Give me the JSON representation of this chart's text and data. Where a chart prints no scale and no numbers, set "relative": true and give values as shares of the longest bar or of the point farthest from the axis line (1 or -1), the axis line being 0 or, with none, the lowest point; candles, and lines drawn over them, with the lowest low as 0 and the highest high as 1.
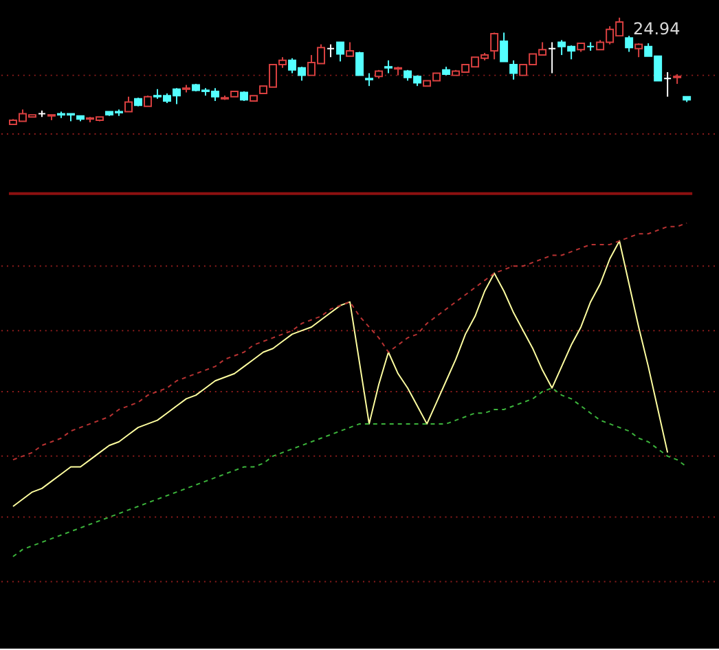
{
  "chart_data": [
    {
      "type": "candlestick",
      "relative": true,
      "ref_lines": [
        {
          "axis": "y",
          "value": 0.46,
          "color": "#8c1c1c",
          "line_style": "dotted"
        },
        {
          "axis": "y",
          "value": -0.09,
          "color": "#8c1c1c",
          "line_style": "dotted"
        }
      ],
      "categories": [
        null,
        null,
        null,
        null,
        null,
        null,
        null,
        null,
        null,
        null,
        null,
        null,
        null,
        null,
        null,
        null,
        null,
        null,
        null,
        null,
        null,
        null,
        null,
        null,
        null,
        null,
        null,
        null,
        null,
        null,
        null,
        null,
        null,
        null,
        null,
        null,
        null,
        null,
        null,
        null,
        null,
        null,
        null,
        null,
        null,
        null,
        null,
        null,
        null,
        null,
        null,
        null,
        null,
        null,
        null,
        null,
        null,
        null,
        null,
        null,
        null,
        null,
        null,
        null,
        null,
        null,
        null,
        null,
        null,
        null,
        null
      ],
      "ohlc": [
        [
          0,
          0.05,
          0,
          0.04
        ],
        [
          0.03,
          0.14,
          0.03,
          0.1
        ],
        [
          0.07,
          0.09,
          0.07,
          0.09
        ],
        [
          0.1,
          0.13,
          0.07,
          0.1
        ],
        [
          0.08,
          0.09,
          0.04,
          0.09
        ],
        [
          0.1,
          0.12,
          0.06,
          0.09
        ],
        [
          0.1,
          0.1,
          0.03,
          0.09
        ],
        [
          0.08,
          0.08,
          0.03,
          0.05
        ],
        [
          0.05,
          0.07,
          0.02,
          0.06
        ],
        [
          0.04,
          0.07,
          0.03,
          0.07
        ],
        [
          0.12,
          0.12,
          0.08,
          0.09
        ],
        [
          0.12,
          0.14,
          0.08,
          0.11
        ],
        [
          0.12,
          0.26,
          0.12,
          0.21
        ],
        [
          0.24,
          0.25,
          0.17,
          0.18
        ],
        [
          0.17,
          0.27,
          0.17,
          0.26
        ],
        [
          0.27,
          0.33,
          0.24,
          0.26
        ],
        [
          0.27,
          0.29,
          0.2,
          0.22
        ],
        [
          0.33,
          0.34,
          0.19,
          0.27
        ],
        [
          0.33,
          0.37,
          0.3,
          0.34
        ],
        [
          0.37,
          0.38,
          0.31,
          0.32
        ],
        [
          0.32,
          0.34,
          0.27,
          0.31
        ],
        [
          0.31,
          0.34,
          0.22,
          0.26
        ],
        [
          0.24,
          0.27,
          0.23,
          0.25
        ],
        [
          0.26,
          0.31,
          0.26,
          0.31
        ],
        [
          0.3,
          0.31,
          0.22,
          0.23
        ],
        [
          0.22,
          0.27,
          0.22,
          0.27
        ],
        [
          0.29,
          0.36,
          0.29,
          0.36
        ],
        [
          0.35,
          0.56,
          0.35,
          0.56
        ],
        [
          0.56,
          0.63,
          0.53,
          0.6
        ],
        [
          0.6,
          0.62,
          0.48,
          0.51
        ],
        [
          0.53,
          0.54,
          0.41,
          0.46
        ],
        [
          0.46,
          0.65,
          0.46,
          0.58
        ],
        [
          0.57,
          0.75,
          0.57,
          0.72
        ],
        [
          0.71,
          0.75,
          0.63,
          0.71
        ],
        [
          0.77,
          0.77,
          0.59,
          0.66
        ],
        [
          0.64,
          0.77,
          0.64,
          0.69
        ],
        [
          0.67,
          0.68,
          0.46,
          0.46
        ],
        [
          0.43,
          0.48,
          0.36,
          0.42
        ],
        [
          0.45,
          0.51,
          0.43,
          0.5
        ],
        [
          0.54,
          0.6,
          0.48,
          0.53
        ],
        [
          0.52,
          0.54,
          0.46,
          0.53
        ],
        [
          0.5,
          0.51,
          0.41,
          0.44
        ],
        [
          0.45,
          0.46,
          0.36,
          0.39
        ],
        [
          0.36,
          0.41,
          0.36,
          0.41
        ],
        [
          0.41,
          0.48,
          0.41,
          0.48
        ],
        [
          0.51,
          0.54,
          0.46,
          0.47
        ],
        [
          0.46,
          0.51,
          0.46,
          0.5
        ],
        [
          0.49,
          0.56,
          0.49,
          0.56
        ],
        [
          0.54,
          0.63,
          0.54,
          0.63
        ],
        [
          0.62,
          0.67,
          0.6,
          0.65
        ],
        [
          0.69,
          0.86,
          0.61,
          0.85
        ],
        [
          0.78,
          0.86,
          0.59,
          0.59
        ],
        [
          0.56,
          0.6,
          0.42,
          0.48
        ],
        [
          0.46,
          0.56,
          0.46,
          0.56
        ],
        [
          0.56,
          0.66,
          0.56,
          0.66
        ],
        [
          0.65,
          0.77,
          0.65,
          0.7
        ],
        [
          0.71,
          0.77,
          0.48,
          0.71
        ],
        [
          0.77,
          0.79,
          0.65,
          0.73
        ],
        [
          0.73,
          0.74,
          0.61,
          0.69
        ],
        [
          0.7,
          0.76,
          0.68,
          0.76
        ],
        [
          0.73,
          0.77,
          0.69,
          0.73
        ],
        [
          0.7,
          0.79,
          0.7,
          0.77
        ],
        [
          0.77,
          0.92,
          0.75,
          0.89
        ],
        [
          0.83,
          1,
          0.83,
          0.96
        ],
        [
          0.81,
          0.83,
          0.68,
          0.72
        ],
        [
          0.71,
          0.76,
          0.63,
          0.75
        ],
        [
          0.73,
          0.76,
          0.64,
          0.64
        ],
        [
          0.64,
          0.64,
          0.41,
          0.41
        ],
        [
          0.43,
          0.49,
          0.26,
          0.43
        ],
        [
          0.44,
          0.47,
          0.38,
          0.45
        ],
        [
          0.26,
          0.26,
          0.21,
          0.23
        ]
      ],
      "colors": [
        "#d94040",
        "#d94040",
        "#d94040",
        "#ffffff",
        "#d94040",
        "#54ffff",
        "#54ffff",
        "#54ffff",
        "#d94040",
        "#d94040",
        "#54ffff",
        "#54ffff",
        "#d94040",
        "#54ffff",
        "#d94040",
        "#54ffff",
        "#54ffff",
        "#54ffff",
        "#d94040",
        "#54ffff",
        "#54ffff",
        "#54ffff",
        "#d94040",
        "#d94040",
        "#54ffff",
        "#d94040",
        "#d94040",
        "#d94040",
        "#d94040",
        "#54ffff",
        "#54ffff",
        "#d94040",
        "#d94040",
        "#ffffff",
        "#54ffff",
        "#d94040",
        "#54ffff",
        "#54ffff",
        "#d94040",
        "#54ffff",
        "#d94040",
        "#54ffff",
        "#54ffff",
        "#d94040",
        "#d94040",
        "#54ffff",
        "#d94040",
        "#d94040",
        "#d94040",
        "#d94040",
        "#d94040",
        "#54ffff",
        "#54ffff",
        "#d94040",
        "#d94040",
        "#d94040",
        "#ffffff",
        "#54ffff",
        "#54ffff",
        "#d94040",
        "#54ffff",
        "#d94040",
        "#d94040",
        "#d94040",
        "#54ffff",
        "#d94040",
        "#54ffff",
        "#54ffff",
        "#ffffff",
        "#d94040",
        "#54ffff"
      ],
      "annotations": [
        "24.94"
      ]
    },
    {
      "type": "line",
      "relative": true,
      "ref_lines": [
        {
          "axis": "y",
          "value": 0.88,
          "color": "#8c1c1c",
          "line_style": "dotted"
        },
        {
          "axis": "y",
          "value": 0.7,
          "color": "#8c1c1c",
          "line_style": "dotted"
        },
        {
          "axis": "y",
          "value": 0.53,
          "color": "#8c1c1c",
          "line_style": "dotted"
        },
        {
          "axis": "y",
          "value": 0.35,
          "color": "#8c1c1c",
          "line_style": "dotted"
        },
        {
          "axis": "y",
          "value": 0.18,
          "color": "#8c1c1c",
          "line_style": "dotted"
        },
        {
          "axis": "y",
          "value": 0,
          "color": "#8c1c1c",
          "line_style": "dotted"
        }
      ],
      "categories": [
        null,
        null,
        null,
        null,
        null,
        null,
        null,
        null,
        null,
        null,
        null,
        null,
        null,
        null,
        null,
        null,
        null,
        null,
        null,
        null,
        null,
        null,
        null,
        null,
        null,
        null,
        null,
        null,
        null,
        null,
        null,
        null,
        null,
        null,
        null,
        null,
        null,
        null,
        null,
        null,
        null,
        null,
        null,
        null,
        null,
        null,
        null,
        null,
        null,
        null,
        null,
        null,
        null,
        null,
        null,
        null,
        null,
        null,
        null,
        null,
        null,
        null,
        null,
        null,
        null,
        null,
        null,
        null,
        null,
        null,
        null
      ],
      "series": [
        {
          "color": "#ffffa0",
          "line_style": "solid",
          "values": [
            0.21,
            0.23,
            0.25,
            0.26,
            0.28,
            0.3,
            0.32,
            0.32,
            0.34,
            0.36,
            0.38,
            0.39,
            0.41,
            0.43,
            0.44,
            0.45,
            0.47,
            0.49,
            0.51,
            0.52,
            0.54,
            0.56,
            0.57,
            0.58,
            0.6,
            0.62,
            0.64,
            0.65,
            0.67,
            0.69,
            0.7,
            0.71,
            0.73,
            0.75,
            0.77,
            0.78,
            0.61,
            0.44,
            0.55,
            0.64,
            0.58,
            0.54,
            0.49,
            0.44,
            0.5,
            0.56,
            0.62,
            0.69,
            0.74,
            0.81,
            0.86,
            0.81,
            0.75,
            0.7,
            0.65,
            0.59,
            0.54,
            0.6,
            0.66,
            0.71,
            0.78,
            0.83,
            0.9,
            0.95,
            0.83,
            0.71,
            0.6,
            0.48,
            0.36,
            null,
            null
          ]
        },
        {
          "color": "#b83232",
          "line_style": "dashed",
          "values": [
            0.34,
            0.35,
            0.36,
            0.38,
            0.39,
            0.4,
            0.42,
            0.43,
            0.44,
            0.45,
            0.46,
            0.48,
            0.49,
            0.5,
            0.52,
            0.53,
            0.54,
            0.56,
            0.57,
            0.58,
            0.59,
            0.6,
            0.62,
            0.63,
            0.64,
            0.66,
            0.67,
            0.68,
            0.69,
            0.7,
            0.72,
            0.73,
            0.74,
            0.76,
            0.77,
            0.78,
            0.74,
            0.71,
            0.68,
            0.64,
            0.66,
            0.68,
            0.69,
            0.72,
            0.74,
            0.76,
            0.78,
            0.8,
            0.82,
            0.84,
            0.86,
            0.87,
            0.88,
            0.88,
            0.89,
            0.9,
            0.91,
            0.91,
            0.92,
            0.93,
            0.94,
            0.94,
            0.94,
            0.95,
            0.96,
            0.97,
            0.97,
            0.98,
            0.99,
            0.99,
            1
          ]
        },
        {
          "color": "#3cb43c",
          "line_style": "dashed",
          "values": [
            0.07,
            0.09,
            0.1,
            0.11,
            0.12,
            0.13,
            0.14,
            0.15,
            0.16,
            0.17,
            0.18,
            0.19,
            0.2,
            0.21,
            0.22,
            0.23,
            0.24,
            0.25,
            0.26,
            0.27,
            0.28,
            0.29,
            0.3,
            0.31,
            0.32,
            0.32,
            0.33,
            0.35,
            0.36,
            0.37,
            0.38,
            0.39,
            0.4,
            0.41,
            0.42,
            0.43,
            0.44,
            0.44,
            0.44,
            0.44,
            0.44,
            0.44,
            0.44,
            0.44,
            0.44,
            0.44,
            0.45,
            0.46,
            0.47,
            0.47,
            0.48,
            0.48,
            0.49,
            0.5,
            0.51,
            0.53,
            0.54,
            0.52,
            0.51,
            0.49,
            0.47,
            0.45,
            0.44,
            0.43,
            0.42,
            0.4,
            0.39,
            0.37,
            0.35,
            0.34,
            0.32
          ]
        }
      ]
    }
  ]
}
